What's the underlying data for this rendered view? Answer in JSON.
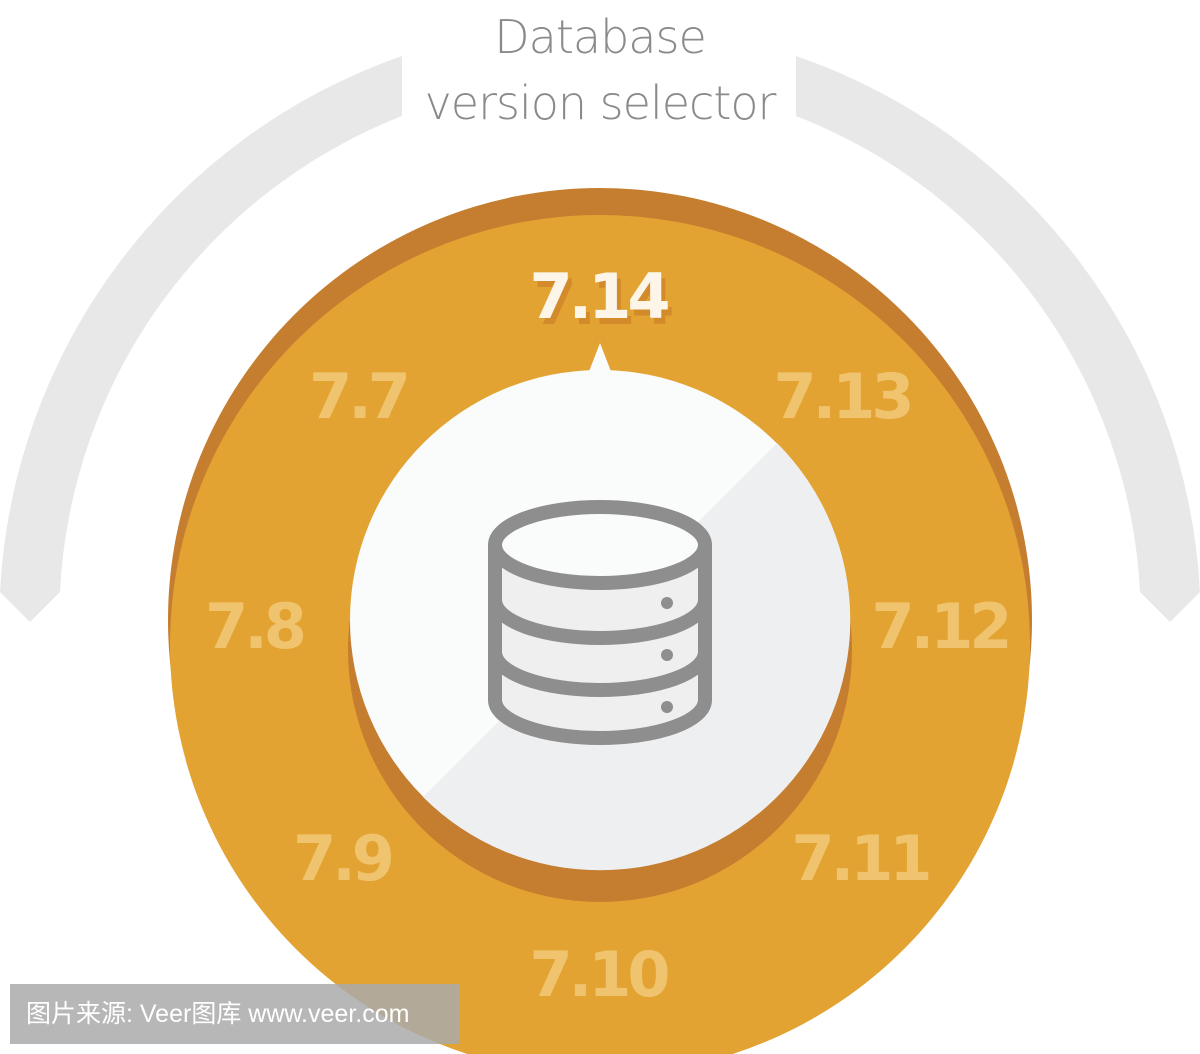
{
  "title": {
    "line1": "Database",
    "line2": "version selector"
  },
  "selector": {
    "selected": "7.14",
    "versions": [
      "7.7",
      "7.8",
      "7.9",
      "7.10",
      "7.11",
      "7.12",
      "7.13"
    ]
  },
  "center_icon": "database-icon",
  "colors": {
    "ring": "#e2a332",
    "ring_shadow": "#c57d30",
    "arc": "#e8e8e8",
    "selected_text": "#fdf6e8",
    "version_text": "#f0c46e"
  },
  "watermark": "图片来源: Veer图库 www.veer.com"
}
